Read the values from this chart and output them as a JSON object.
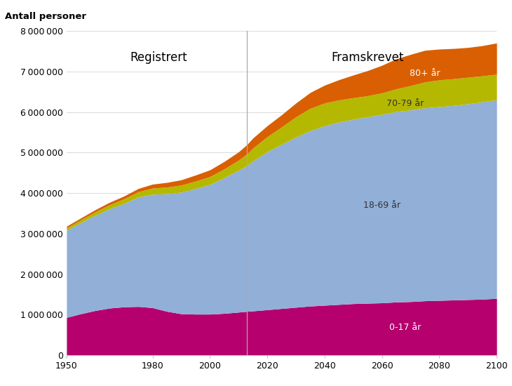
{
  "ylabel": "Antall personer",
  "ylim": [
    0,
    8000000
  ],
  "yticks": [
    0,
    1000000,
    2000000,
    3000000,
    4000000,
    5000000,
    6000000,
    7000000,
    8000000
  ],
  "divider_year": 2013,
  "label_registered": "Registrert",
  "label_projected": "Framskrevet",
  "colors": {
    "0-17": "#b5006e",
    "18-69": "#91afd7",
    "70-79": "#b5b800",
    "80+": "#d95f02"
  },
  "segment_labels": {
    "0-17": "0-17 år",
    "18-69": "18-69 år",
    "70-79": "70-79 år"
  },
  "years": [
    1950,
    1955,
    1960,
    1965,
    1970,
    1975,
    1980,
    1985,
    1990,
    1995,
    2000,
    2005,
    2010,
    2013,
    2015,
    2020,
    2025,
    2030,
    2035,
    2040,
    2045,
    2050,
    2055,
    2060,
    2065,
    2070,
    2075,
    2080,
    2085,
    2090,
    2095,
    2100
  ],
  "data_0_17": [
    930000,
    1020000,
    1100000,
    1160000,
    1190000,
    1200000,
    1170000,
    1080000,
    1020000,
    1010000,
    1010000,
    1030000,
    1060000,
    1080000,
    1090000,
    1120000,
    1150000,
    1180000,
    1210000,
    1230000,
    1250000,
    1270000,
    1280000,
    1290000,
    1310000,
    1320000,
    1340000,
    1350000,
    1360000,
    1370000,
    1380000,
    1400000
  ],
  "data_18_69": [
    2150000,
    2250000,
    2350000,
    2450000,
    2550000,
    2700000,
    2800000,
    2900000,
    3000000,
    3100000,
    3200000,
    3350000,
    3500000,
    3600000,
    3700000,
    3900000,
    4050000,
    4200000,
    4330000,
    4430000,
    4500000,
    4550000,
    4600000,
    4650000,
    4700000,
    4730000,
    4760000,
    4780000,
    4800000,
    4830000,
    4870000,
    4900000
  ],
  "data_70_79": [
    60000,
    70000,
    85000,
    100000,
    115000,
    130000,
    150000,
    165000,
    175000,
    185000,
    195000,
    215000,
    250000,
    290000,
    320000,
    370000,
    430000,
    500000,
    550000,
    560000,
    545000,
    530000,
    520000,
    530000,
    560000,
    600000,
    640000,
    660000,
    660000,
    655000,
    640000,
    630000
  ],
  "data_80p": [
    40000,
    45000,
    52000,
    60000,
    68000,
    80000,
    98000,
    115000,
    130000,
    148000,
    165000,
    183000,
    205000,
    230000,
    245000,
    270000,
    300000,
    340000,
    390000,
    440000,
    500000,
    560000,
    620000,
    680000,
    740000,
    770000,
    780000,
    760000,
    745000,
    735000,
    745000,
    770000
  ]
}
